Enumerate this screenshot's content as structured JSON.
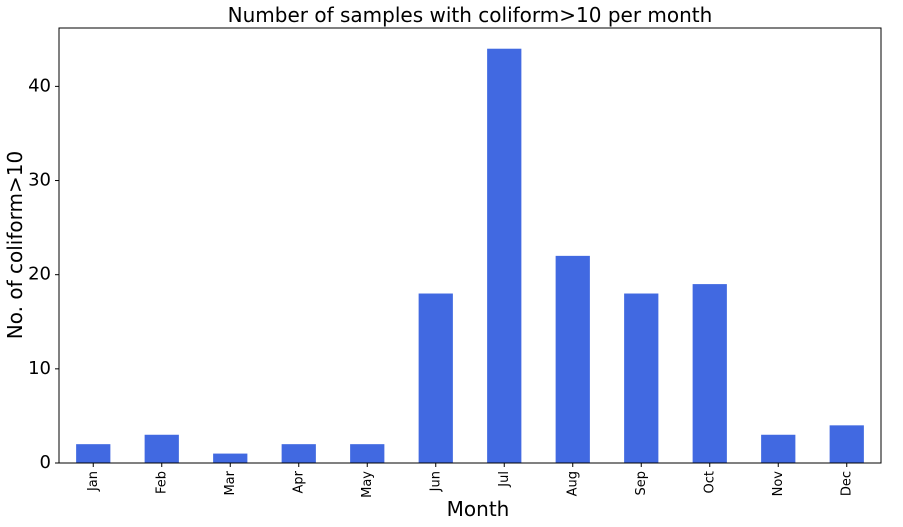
{
  "chart_data": {
    "type": "bar",
    "title": "Number of samples with coliform>10 per month",
    "xlabel": "Month",
    "ylabel": "No. of coliform>10",
    "categories": [
      "Jan",
      "Feb",
      "Mar",
      "Apr",
      "May",
      "Jun",
      "Jul",
      "Aug",
      "Sep",
      "Oct",
      "Nov",
      "Dec"
    ],
    "values": [
      2,
      3,
      1,
      2,
      2,
      18,
      44,
      22,
      18,
      19,
      3,
      4
    ],
    "yticks": [
      0,
      10,
      20,
      30,
      40
    ],
    "ylim": [
      0,
      46.2
    ],
    "bar_color": "#4169e1",
    "grid": false,
    "legend": "none"
  }
}
